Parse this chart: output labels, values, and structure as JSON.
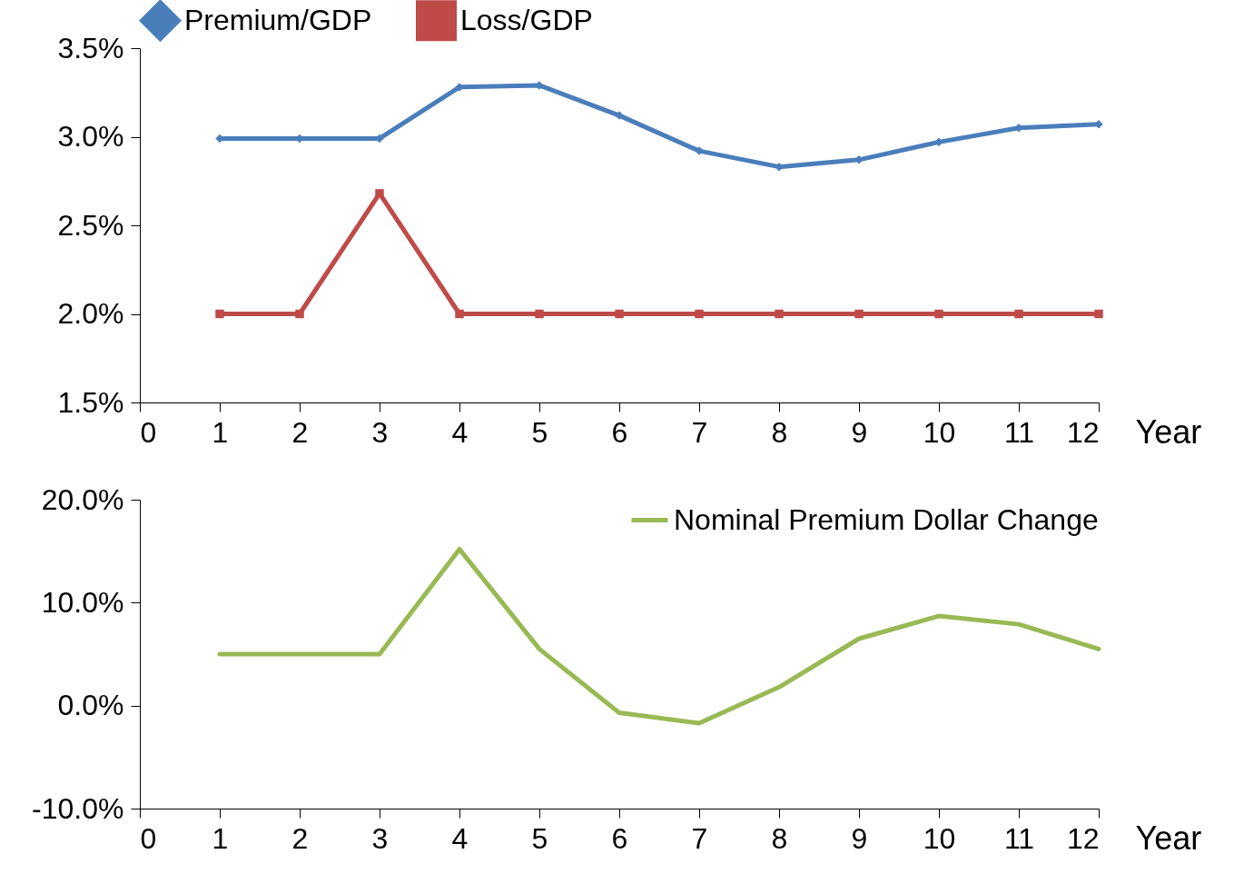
{
  "chart_data": [
    {
      "type": "line",
      "xlabel": "Year",
      "x": [
        1,
        2,
        3,
        4,
        5,
        6,
        7,
        8,
        9,
        10,
        11,
        12
      ],
      "series": [
        {
          "name": "Premium/GDP",
          "color": "#4a7ebb",
          "marker": "diamond",
          "values": [
            2.99,
            2.99,
            2.99,
            3.28,
            3.29,
            3.12,
            2.92,
            2.83,
            2.87,
            2.97,
            3.05,
            3.07
          ]
        },
        {
          "name": "Loss/GDP",
          "color": "#be4b48",
          "marker": "square",
          "values": [
            2.0,
            2.0,
            2.68,
            2.0,
            2.0,
            2.0,
            2.0,
            2.0,
            2.0,
            2.0,
            2.0,
            2.0
          ]
        }
      ],
      "xlim": [
        0,
        12
      ],
      "xticks": [
        0,
        1,
        2,
        3,
        4,
        5,
        6,
        7,
        8,
        9,
        10,
        11,
        12
      ],
      "ylim": [
        1.5,
        3.5
      ],
      "yticks": [
        {
          "value": 1.5,
          "label": "1.5%"
        },
        {
          "value": 2.0,
          "label": "2.0%"
        },
        {
          "value": 2.5,
          "label": "2.5%"
        },
        {
          "value": 3.0,
          "label": "3.0%"
        },
        {
          "value": 3.5,
          "label": "3.5%"
        }
      ],
      "legend": "top",
      "grid": false
    },
    {
      "type": "line",
      "xlabel": "Year",
      "x": [
        1,
        2,
        3,
        4,
        5,
        6,
        7,
        8,
        9,
        10,
        11,
        12
      ],
      "series": [
        {
          "name": "Nominal Premium Dollar Change",
          "color": "#98b954",
          "marker": "none",
          "values": [
            5.0,
            5.0,
            5.0,
            15.2,
            5.5,
            -0.7,
            -1.7,
            1.8,
            6.5,
            8.7,
            7.9,
            5.5
          ]
        }
      ],
      "xlim": [
        0,
        12
      ],
      "xticks": [
        0,
        1,
        2,
        3,
        4,
        5,
        6,
        7,
        8,
        9,
        10,
        11,
        12
      ],
      "ylim": [
        -10,
        20
      ],
      "yticks": [
        {
          "value": -10,
          "label": "-10.0%"
        },
        {
          "value": 0,
          "label": "0.0%"
        },
        {
          "value": 10,
          "label": "10.0%"
        },
        {
          "value": 20,
          "label": "20.0%"
        }
      ],
      "legend": "top right",
      "grid": false
    }
  ]
}
